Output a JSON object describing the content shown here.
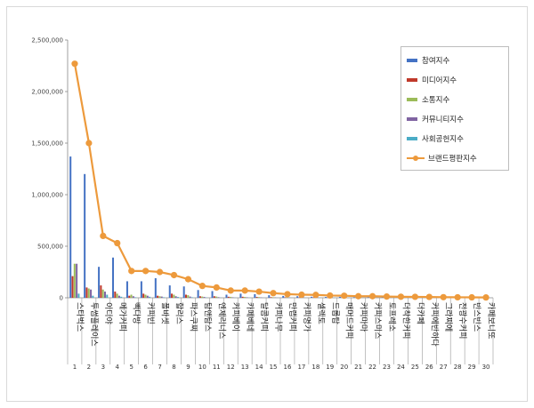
{
  "chart_data": {
    "type": "bar",
    "y_ticks": [
      "0",
      "500,000",
      "1,000,000",
      "1,500,000",
      "2,000,000",
      "2,500,000"
    ],
    "ylim": [
      0,
      2500000
    ],
    "grid": false,
    "legend_position": "right",
    "ranks": [
      "1",
      "2",
      "3",
      "4",
      "5",
      "6",
      "7",
      "8",
      "9",
      "10",
      "11",
      "12",
      "13",
      "14",
      "15",
      "16",
      "17",
      "18",
      "19",
      "20",
      "21",
      "22",
      "23",
      "24",
      "25",
      "26",
      "27",
      "28",
      "29",
      "30"
    ],
    "categories": [
      "스타벅스",
      "투썸플레이스",
      "이디야",
      "메가커피",
      "빽다방",
      "커피빈",
      "폴바셋",
      "할리스",
      "파스쿠찌",
      "탐앤탐스",
      "엔제리너스",
      "커피베이",
      "카페베네",
      "달콤커피",
      "커피나무",
      "만랩커피",
      "커피명가",
      "셀렉토",
      "드롭탑",
      "매머드커피",
      "커피마마",
      "커피스미스",
      "토프레소",
      "더착한커피",
      "더카페",
      "커피에반하다",
      "그라찌에",
      "전광수커피",
      "빈스빈스",
      "카페보니또"
    ],
    "series": [
      {
        "name": "참여지수",
        "color": "#4472c4",
        "values": [
          1370000,
          1200000,
          300000,
          390000,
          160000,
          160000,
          190000,
          120000,
          110000,
          75000,
          65000,
          30000,
          40000,
          35000,
          25000,
          18000,
          15000,
          10000,
          8000,
          9000,
          6000,
          6000,
          5000,
          4000,
          4000,
          3000,
          3000,
          2500,
          2000,
          2000
        ]
      },
      {
        "name": "미디어지수",
        "color": "#c0392b",
        "values": [
          210000,
          100000,
          120000,
          60000,
          20000,
          40000,
          20000,
          40000,
          30000,
          15000,
          15000,
          10000,
          10000,
          8000,
          6000,
          5000,
          4000,
          4000,
          3000,
          3000,
          2000,
          2000,
          1500,
          1500,
          1500,
          1000,
          1000,
          1000,
          800,
          800
        ]
      },
      {
        "name": "소통지수",
        "color": "#9bbb59",
        "values": [
          330000,
          90000,
          80000,
          40000,
          30000,
          30000,
          15000,
          30000,
          25000,
          12000,
          12000,
          9000,
          8000,
          7000,
          5000,
          4000,
          4000,
          3000,
          3000,
          2500,
          2000,
          2000,
          1500,
          1500,
          1200,
          1000,
          1000,
          800,
          800,
          600
        ]
      },
      {
        "name": "커뮤니티지수",
        "color": "#8064a2",
        "values": [
          330000,
          80000,
          60000,
          20000,
          15000,
          20000,
          12000,
          15000,
          12000,
          8000,
          6000,
          5000,
          5000,
          4000,
          3000,
          3000,
          2500,
          2000,
          2000,
          1500,
          1200,
          1200,
          1000,
          1000,
          800,
          800,
          600,
          600,
          500,
          500
        ]
      },
      {
        "name": "사회공헌지수",
        "color": "#4bacc6",
        "values": [
          40000,
          20000,
          30000,
          10000,
          5000,
          10000,
          5000,
          8000,
          5000,
          3000,
          2000,
          2000,
          2000,
          1500,
          1000,
          1000,
          800,
          800,
          600,
          600,
          500,
          500,
          400,
          400,
          300,
          300,
          300,
          200,
          200,
          200
        ]
      }
    ],
    "line_series": {
      "name": "브랜드평판지수",
      "color": "#ed9a3c",
      "values": [
        2270000,
        1500000,
        600000,
        530000,
        260000,
        260000,
        250000,
        220000,
        180000,
        115000,
        100000,
        70000,
        70000,
        60000,
        45000,
        35000,
        30000,
        28000,
        22000,
        20000,
        15000,
        15000,
        12000,
        10000,
        9000,
        8000,
        6000,
        5000,
        4000,
        3000
      ]
    }
  }
}
